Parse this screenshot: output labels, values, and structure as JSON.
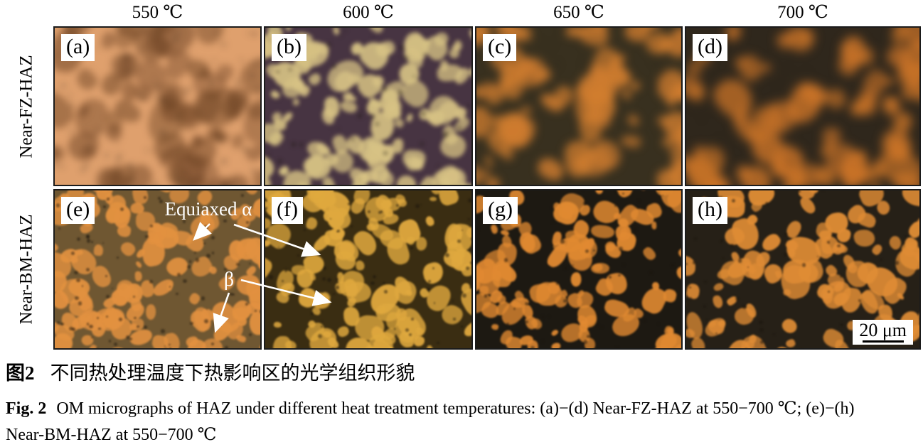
{
  "figure": {
    "column_headers": [
      "550 ℃",
      "600 ℃",
      "650 ℃",
      "700 ℃"
    ],
    "row_labels": [
      "Near-FZ-HAZ",
      "Near-BM-HAZ"
    ],
    "panels": [
      {
        "label": "(a)",
        "colors": {
          "bg": "#dfa06d",
          "blob": "#6f4526"
        }
      },
      {
        "label": "(b)",
        "colors": {
          "bg": "#473442",
          "blob": "#d7c284"
        }
      },
      {
        "label": "(c)",
        "colors": {
          "bg": "#38301f",
          "blob": "#d07d2f"
        }
      },
      {
        "label": "(d)",
        "colors": {
          "bg": "#2f271c",
          "blob": "#cf7628"
        }
      },
      {
        "label": "(e)",
        "colors": {
          "bg": "#6f5732",
          "blob": "#e29140"
        }
      },
      {
        "label": "(f)",
        "colors": {
          "bg": "#3a2d12",
          "blob": "#dfa83e"
        }
      },
      {
        "label": "(g)",
        "colors": {
          "bg": "#1d1912",
          "blob": "#e08931"
        }
      },
      {
        "label": "(h)",
        "colors": {
          "bg": "#262017",
          "blob": "#df8c35"
        }
      }
    ],
    "annotations": {
      "equiaxed_alpha": "Equiaxed α",
      "beta": "β",
      "annotation_color": "#ffffff"
    },
    "scale_bar": {
      "label": "20 μm"
    }
  },
  "caption": {
    "zh_label": "图2",
    "zh_text": "不同热处理温度下热影响区的光学组织形貌",
    "en_label": "Fig. 2",
    "en_line1": "OM micrographs of HAZ under different heat treatment temperatures: (a)−(d) Near-FZ-HAZ at 550−700 ℃; (e)−(h)",
    "en_line2": "Near-BM-HAZ at 550−700 ℃"
  }
}
